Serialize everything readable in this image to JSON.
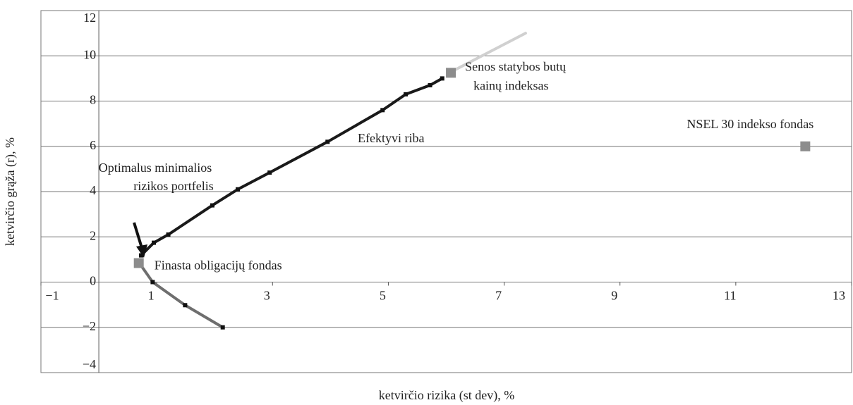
{
  "chart_data": {
    "type": "line",
    "x_label": "ketvirčio rizika (st dev), %",
    "y_label": "ketvirčio grąža (r), %",
    "xlim": [
      -1,
      13
    ],
    "ylim": [
      -4,
      12
    ],
    "xticks": [
      {
        "value": -1,
        "label": "−1"
      },
      1,
      3,
      5,
      7,
      9,
      11,
      13
    ],
    "yticks": [
      {
        "value": -4,
        "label": "−4"
      },
      {
        "value": -2,
        "label": "−2"
      },
      0,
      2,
      4,
      6,
      8,
      10,
      12
    ],
    "grid": true,
    "series": [
      {
        "color": "#1a1a1a",
        "markers": true,
        "x": [
          0.73,
          0.95,
          1.2,
          1.96,
          2.4,
          2.95,
          3.95,
          4.9,
          5.3,
          5.72,
          5.93
        ],
        "values": [
          1.18,
          1.74,
          2.1,
          3.39,
          4.1,
          4.84,
          6.2,
          7.6,
          8.3,
          8.7,
          9.0
        ]
      },
      {
        "color": "#6e6e6e",
        "markers": true,
        "x": [
          0.7,
          0.93,
          1.49,
          2.14
        ],
        "values": [
          0.84,
          0.0,
          -1.02,
          -2.0
        ]
      },
      {
        "color": "#d0d0d0",
        "markers": false,
        "x": [
          6.09,
          7.37
        ],
        "values": [
          9.3,
          11.0
        ]
      }
    ],
    "points": [
      {
        "label": [
          "Finasta obligacijų fondas"
        ],
        "x": 0.69,
        "y": 0.84,
        "color": "#8c8c8c"
      },
      {
        "label": [
          "Senos statybos butų",
          "kainų indeksas"
        ],
        "x": 6.08,
        "y": 9.25,
        "color": "#8c8c8c"
      },
      {
        "label": [
          "NSEL 30 indekso fondas"
        ],
        "x": 12.2,
        "y": 6.0,
        "color": "#8c8c8c"
      }
    ],
    "annotations": [
      "Efektyvi riba",
      [
        "Optimalus minimalios",
        "rizikos portfelis"
      ]
    ]
  }
}
